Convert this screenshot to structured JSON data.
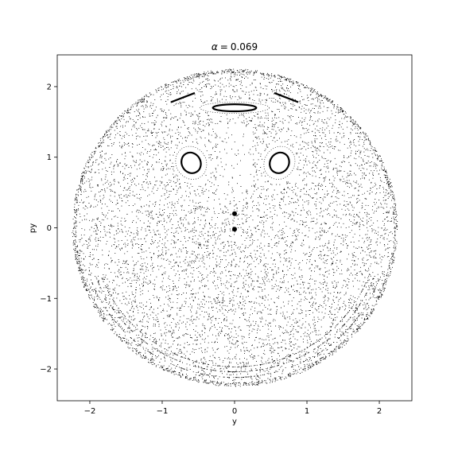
{
  "chart_data": {
    "type": "scatter",
    "title": "α = 0.069",
    "title_symbol": "α",
    "title_value": "0.069",
    "xlabel": "y",
    "ylabel": "py",
    "xlim": [
      -2.45,
      2.45
    ],
    "ylim": [
      -2.45,
      2.45
    ],
    "xticks": [
      -2,
      -1,
      0,
      1,
      2
    ],
    "yticks": [
      -2,
      -1,
      0,
      1,
      2
    ],
    "grid": false,
    "legend": "none",
    "point_color": "#000000",
    "series": [
      {
        "description": "Poincare section scatter",
        "boundary_radius": 2.25,
        "islands": [
          {
            "center": [
              -0.6,
              0.92
            ],
            "rx": 0.13,
            "ry": 0.15
          },
          {
            "center": [
              0.62,
              0.92
            ],
            "rx": 0.13,
            "ry": 0.15
          },
          {
            "center": [
              0.0,
              1.7
            ],
            "rx": 0.3,
            "ry": 0.05
          }
        ],
        "arcs": [
          {
            "from": [
              -0.88,
              1.78
            ],
            "to": [
              -0.55,
              1.91
            ]
          },
          {
            "from": [
              0.55,
              1.91
            ],
            "to": [
              0.88,
              1.78
            ]
          }
        ],
        "center_markers": [
          [
            0.0,
            0.2
          ],
          [
            0.0,
            -0.02
          ]
        ]
      }
    ]
  }
}
